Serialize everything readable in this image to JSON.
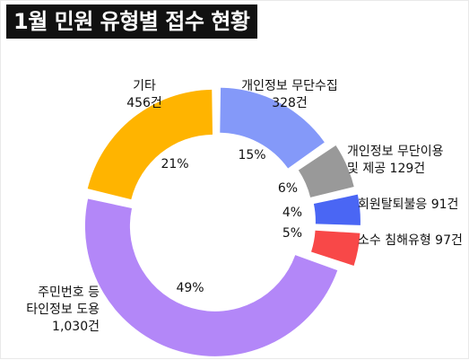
{
  "chart_data": {
    "type": "pie",
    "title": "1월 민원 유형별 접수 현황",
    "slices": [
      {
        "label": [
          "개인정보 무단수집",
          "328건"
        ],
        "count": 328,
        "percent": "15%",
        "color": "#8499F9"
      },
      {
        "label": [
          "개인정보 무단이용",
          "및 제공 129건"
        ],
        "count": 129,
        "percent": "6%",
        "color": "#999999"
      },
      {
        "label": [
          "회원탈퇴불응 91건"
        ],
        "count": 91,
        "percent": "4%",
        "color": "#4A66F4"
      },
      {
        "label": [
          "소수 침해유형 97건"
        ],
        "count": 97,
        "percent": "5%",
        "color": "#F84848"
      },
      {
        "label": [
          "주민번호 등",
          "타인정보 도용",
          "1,030건"
        ],
        "count": 1030,
        "percent": "49%",
        "color": "#B387F8"
      },
      {
        "label": [
          "기타",
          "456건"
        ],
        "count": 456,
        "percent": "21%",
        "color": "#FFB400"
      }
    ]
  }
}
